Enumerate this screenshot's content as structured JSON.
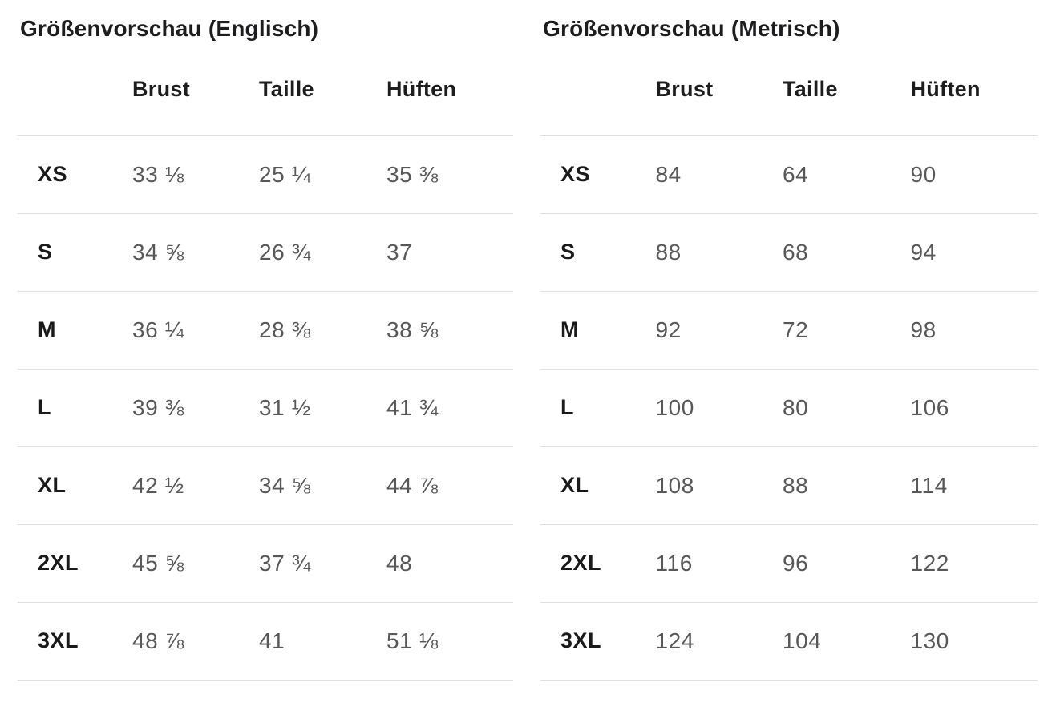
{
  "colors": {
    "background": "#ffffff",
    "title_text": "#1d1d1f",
    "header_text": "#1d1d1f",
    "size_label_text": "#1a1a1a",
    "value_text": "#58585a",
    "divider": "#e0e0e0"
  },
  "tables": [
    {
      "title": "Größenvorschau (Englisch)",
      "columns": [
        "Brust",
        "Taille",
        "Hüften"
      ],
      "rows": [
        {
          "size": "XS",
          "values": [
            "33 ⅛",
            "25 ¼",
            "35 ⅜"
          ]
        },
        {
          "size": "S",
          "values": [
            "34 ⅝",
            "26 ¾",
            "37"
          ]
        },
        {
          "size": "M",
          "values": [
            "36 ¼",
            "28 ⅜",
            "38 ⅝"
          ]
        },
        {
          "size": "L",
          "values": [
            "39 ⅜",
            "31 ½",
            "41 ¾"
          ]
        },
        {
          "size": "XL",
          "values": [
            "42 ½",
            "34 ⅝",
            "44 ⅞"
          ]
        },
        {
          "size": "2XL",
          "values": [
            "45 ⅝",
            "37 ¾",
            "48"
          ]
        },
        {
          "size": "3XL",
          "values": [
            "48 ⅞",
            "41",
            "51 ⅛"
          ]
        }
      ]
    },
    {
      "title": "Größenvorschau (Metrisch)",
      "columns": [
        "Brust",
        "Taille",
        "Hüften"
      ],
      "rows": [
        {
          "size": "XS",
          "values": [
            "84",
            "64",
            "90"
          ]
        },
        {
          "size": "S",
          "values": [
            "88",
            "68",
            "94"
          ]
        },
        {
          "size": "M",
          "values": [
            "92",
            "72",
            "98"
          ]
        },
        {
          "size": "L",
          "values": [
            "100",
            "80",
            "106"
          ]
        },
        {
          "size": "XL",
          "values": [
            "108",
            "88",
            "114"
          ]
        },
        {
          "size": "2XL",
          "values": [
            "116",
            "96",
            "122"
          ]
        },
        {
          "size": "3XL",
          "values": [
            "124",
            "104",
            "130"
          ]
        }
      ]
    }
  ]
}
